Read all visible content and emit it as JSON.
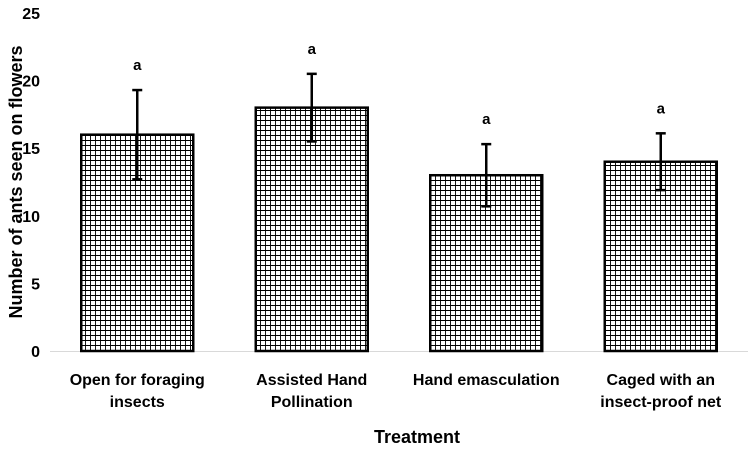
{
  "chart_data": {
    "type": "bar",
    "title": "",
    "xlabel": "Treatment",
    "ylabel": "Number of ants seen on flowers",
    "ylim": [
      0,
      25
    ],
    "yticks": [
      0,
      5,
      10,
      15,
      20,
      25
    ],
    "grid": false,
    "legend": "none",
    "bar_fill": "crosshatch grid",
    "colors": {
      "bar_stroke": "#000000",
      "hatch": "#000000",
      "axis": "#d9d9d9"
    },
    "categories": [
      [
        "Open for foraging",
        "insects"
      ],
      [
        "Assisted Hand",
        "Pollination"
      ],
      [
        "Hand emasculation"
      ],
      [
        "Caged with an",
        "insect-proof net"
      ]
    ],
    "values": [
      16,
      18,
      13,
      14
    ],
    "error_bars": [
      {
        "lower": 12.7,
        "upper": 19.3
      },
      {
        "lower": 15.5,
        "upper": 20.5
      },
      {
        "lower": 10.7,
        "upper": 15.3
      },
      {
        "lower": 11.9,
        "upper": 16.1
      }
    ],
    "significance_labels": [
      "a",
      "a",
      "a",
      "a"
    ]
  }
}
